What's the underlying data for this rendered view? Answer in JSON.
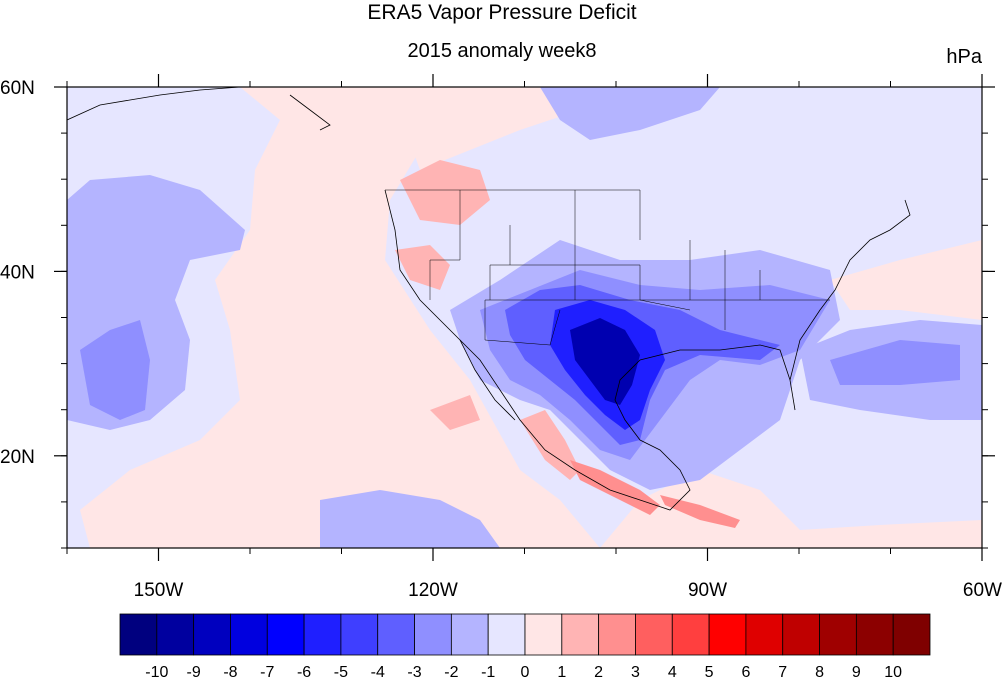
{
  "title": "ERA5 Vapor Pressure Deficit",
  "subtitle": "2015 anomaly week8",
  "units": "hPa",
  "map": {
    "lon_range": [
      -160,
      -60
    ],
    "lat_range": [
      10,
      60
    ],
    "x_ticks": [
      {
        "lon": -150,
        "label": "150W"
      },
      {
        "lon": -120,
        "label": "120W"
      },
      {
        "lon": -90,
        "label": "90W"
      },
      {
        "lon": -60,
        "label": "60W"
      }
    ],
    "y_ticks": [
      {
        "lat": 60,
        "label": "60N"
      },
      {
        "lat": 40,
        "label": "40N"
      },
      {
        "lat": 20,
        "label": "20N"
      }
    ]
  },
  "colorbar": {
    "labels": [
      "-10",
      "-9",
      "-8",
      "-7",
      "-6",
      "-5",
      "-4",
      "-3",
      "-2",
      "-1",
      "0",
      "1",
      "2",
      "3",
      "4",
      "5",
      "6",
      "7",
      "8",
      "9",
      "10"
    ],
    "colors": [
      "#00007f",
      "#00009f",
      "#0000bf",
      "#0000df",
      "#0000ff",
      "#1f1fff",
      "#3f3fff",
      "#5f5fff",
      "#8f8fff",
      "#b4b4ff",
      "#e6e6ff",
      "#ffe6e6",
      "#ffb4b4",
      "#ff8f8f",
      "#ff5f5f",
      "#ff3f3f",
      "#ff0000",
      "#df0000",
      "#bf0000",
      "#9f0000",
      "#8c0000",
      "#7f0000"
    ]
  },
  "colors": {
    "neg1": "#e6e6ff",
    "neg2": "#b4b4ff",
    "neg3": "#8f8fff",
    "neg4": "#5f5fff",
    "neg5": "#1f1fff",
    "neg6": "#0000df",
    "neg8": "#0000b0",
    "pos1": "#ffe6e6",
    "pos2": "#ffb4b4",
    "pos3": "#ff8f8f",
    "pos4": "#ff5f5f"
  }
}
